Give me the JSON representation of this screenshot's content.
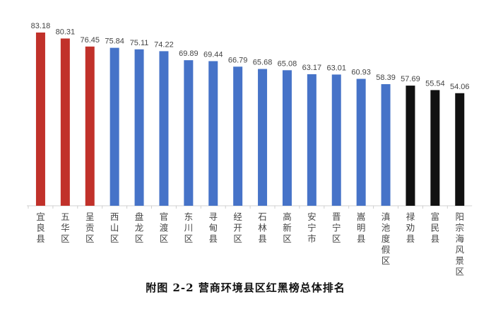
{
  "chart_data": {
    "type": "bar",
    "title": "附图 2-2 营商环境县区红黑榜总体排名",
    "xlabel": "",
    "ylabel": "",
    "ylim": [
      0,
      83.18
    ],
    "grid": false,
    "categories": [
      "宜良县",
      "五华区",
      "呈贡区",
      "西山区",
      "盘龙区",
      "官渡区",
      "东川区",
      "寻甸县",
      "经开区",
      "石林县",
      "高新区",
      "安宁市",
      "晋宁区",
      "嵩明县",
      "滇池度假区",
      "禄劝县",
      "富民县",
      "阳宗海风景区"
    ],
    "values": [
      83.18,
      80.31,
      76.45,
      75.84,
      75.11,
      74.22,
      69.89,
      69.44,
      66.79,
      65.68,
      65.08,
      63.17,
      63.01,
      60.93,
      58.39,
      57.69,
      55.54,
      54.06
    ],
    "value_labels": [
      "83.18",
      "80.31",
      "76.45",
      "75.84",
      "75.11",
      "74.22",
      "69.89",
      "69.44",
      "66.79",
      "65.68",
      "65.08",
      "63.17",
      "63.01",
      "60.93",
      "58.39",
      "57.69",
      "55.54",
      "54.06"
    ],
    "groups": [
      "red",
      "red",
      "red",
      "blue",
      "blue",
      "blue",
      "blue",
      "blue",
      "blue",
      "blue",
      "blue",
      "blue",
      "blue",
      "blue",
      "blue",
      "black",
      "black",
      "black"
    ],
    "colors": {
      "red": "#c1312a",
      "blue": "#4673c8",
      "black": "#111111"
    }
  }
}
